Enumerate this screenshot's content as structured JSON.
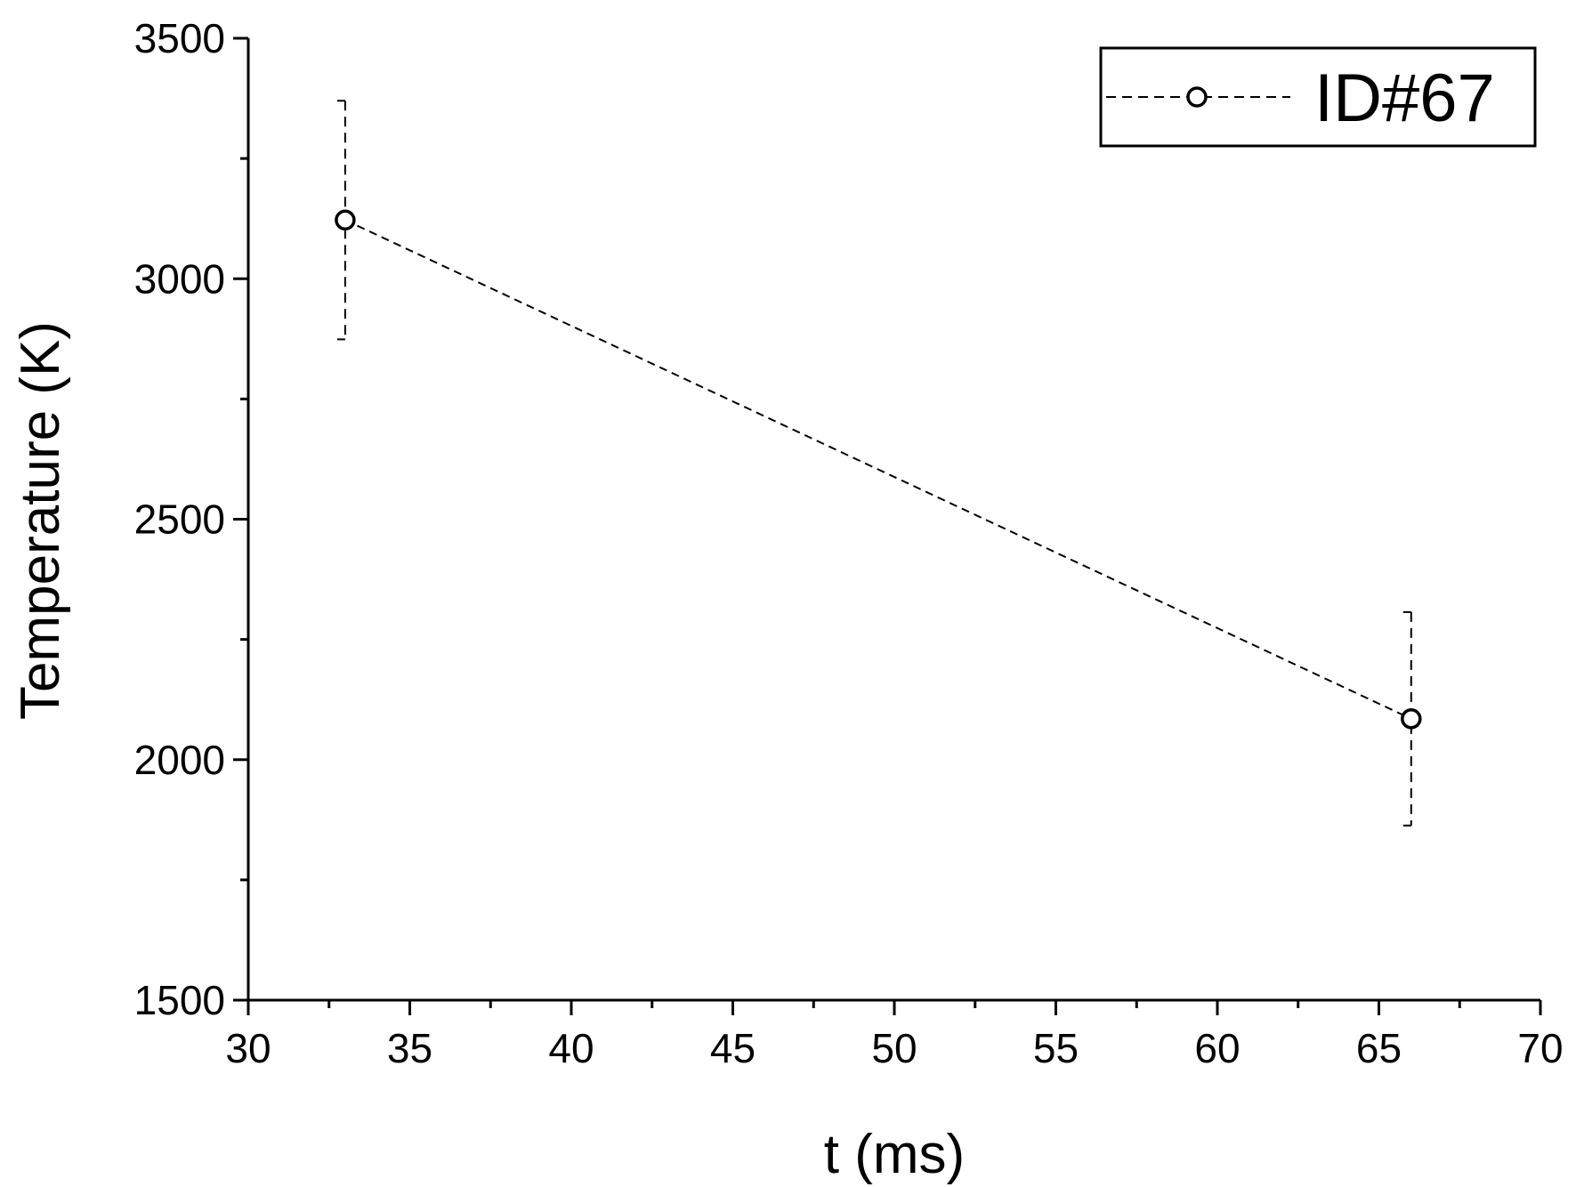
{
  "chart_data": {
    "type": "line",
    "x_label": "t (ms)",
    "y_label": "Temperature (K)",
    "series": [
      {
        "name": "ID#67",
        "color": "#000000",
        "x": [
          33,
          66
        ],
        "values": [
          3122,
          2085
        ],
        "errors": [
          248,
          222
        ]
      }
    ],
    "xlim": [
      30,
      70
    ],
    "xticks": [
      30,
      35,
      40,
      45,
      50,
      55,
      60,
      65,
      70
    ],
    "xminorticks": [
      32.5,
      37.5,
      42.5,
      47.5,
      52.5,
      57.5,
      62.5,
      67.5
    ],
    "ylim": [
      1500,
      3500
    ],
    "yticks": [
      1500,
      2000,
      2500,
      3000,
      3500
    ],
    "yminorticks": [
      1750,
      2250,
      2750,
      3250
    ],
    "legend": "top-right",
    "grid": false
  }
}
